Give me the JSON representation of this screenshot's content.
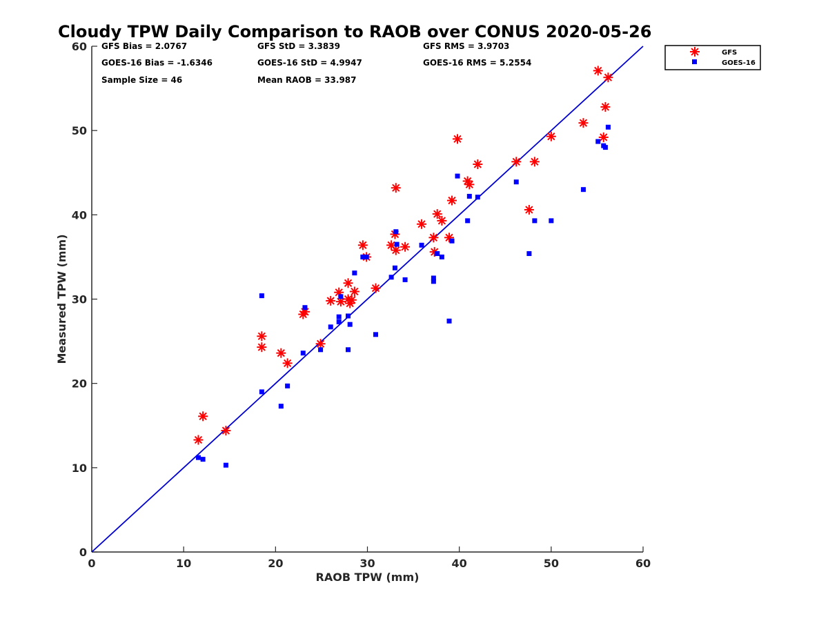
{
  "chart_data": {
    "type": "scatter",
    "title": "Cloudy TPW Daily Comparison to RAOB over CONUS 2020-05-26",
    "xlabel": "RAOB TPW (mm)",
    "ylabel": "Measured TPW (mm)",
    "xlim": [
      0,
      60
    ],
    "ylim": [
      0,
      60
    ],
    "xticks": [
      "0",
      "10",
      "20",
      "30",
      "40",
      "50",
      "60"
    ],
    "yticks": [
      "0",
      "10",
      "20",
      "30",
      "40",
      "50",
      "60"
    ],
    "grid": false,
    "legend_position": "top-right outside",
    "stats": [
      "GFS Bias = 2.0767",
      "GFS StD = 3.3839",
      "GFS RMS = 3.9703",
      "GOES-16 Bias = -1.6346",
      "GOES-16 StD = 4.9947",
      "GOES-16 RMS = 5.2554",
      "Sample Size = 46",
      "Mean RAOB = 33.987"
    ],
    "reference_line": {
      "x": [
        0,
        60
      ],
      "y": [
        0,
        60
      ],
      "color": "#0000cc"
    },
    "series": [
      {
        "name": "GFS",
        "marker": "asterisk",
        "color": "#ff0000",
        "points": [
          [
            11.6,
            13.3
          ],
          [
            12.1,
            16.1
          ],
          [
            14.6,
            14.4
          ],
          [
            18.5,
            25.6
          ],
          [
            18.5,
            24.3
          ],
          [
            20.6,
            23.6
          ],
          [
            21.3,
            22.4
          ],
          [
            23.0,
            28.2
          ],
          [
            23.2,
            28.5
          ],
          [
            24.9,
            24.7
          ],
          [
            26.0,
            29.8
          ],
          [
            26.9,
            30.8
          ],
          [
            27.1,
            29.7
          ],
          [
            27.9,
            31.9
          ],
          [
            27.9,
            30.0
          ],
          [
            28.1,
            29.5
          ],
          [
            28.3,
            29.9
          ],
          [
            28.6,
            30.9
          ],
          [
            29.5,
            36.4
          ],
          [
            29.9,
            35.0
          ],
          [
            30.9,
            31.3
          ],
          [
            32.6,
            36.4
          ],
          [
            33.0,
            37.7
          ],
          [
            33.1,
            35.8
          ],
          [
            33.1,
            43.2
          ],
          [
            34.1,
            36.2
          ],
          [
            35.9,
            38.9
          ],
          [
            37.2,
            37.3
          ],
          [
            37.3,
            35.6
          ],
          [
            37.6,
            40.1
          ],
          [
            38.1,
            39.3
          ],
          [
            38.9,
            37.3
          ],
          [
            39.2,
            41.7
          ],
          [
            39.8,
            49.0
          ],
          [
            40.9,
            44.0
          ],
          [
            41.1,
            43.6
          ],
          [
            42.0,
            46.0
          ],
          [
            46.2,
            46.3
          ],
          [
            47.6,
            40.6
          ],
          [
            48.2,
            46.3
          ],
          [
            50.0,
            49.3
          ],
          [
            53.5,
            50.9
          ],
          [
            55.1,
            57.1
          ],
          [
            55.7,
            49.2
          ],
          [
            55.9,
            52.8
          ],
          [
            56.2,
            56.3
          ]
        ]
      },
      {
        "name": "GOES-16",
        "marker": "square",
        "color": "#0000ff",
        "points": [
          [
            11.6,
            11.2
          ],
          [
            12.1,
            11.0
          ],
          [
            14.6,
            10.3
          ],
          [
            18.5,
            30.4
          ],
          [
            18.5,
            19.0
          ],
          [
            20.6,
            17.3
          ],
          [
            21.3,
            19.7
          ],
          [
            23.0,
            23.6
          ],
          [
            23.2,
            29.0
          ],
          [
            24.9,
            24.0
          ],
          [
            26.0,
            26.7
          ],
          [
            26.9,
            27.3
          ],
          [
            26.9,
            27.9
          ],
          [
            27.1,
            30.3
          ],
          [
            27.9,
            28.0
          ],
          [
            27.9,
            24.0
          ],
          [
            28.1,
            27.0
          ],
          [
            28.6,
            33.1
          ],
          [
            29.5,
            35.0
          ],
          [
            29.9,
            35.0
          ],
          [
            30.9,
            25.8
          ],
          [
            32.6,
            32.6
          ],
          [
            33.0,
            33.7
          ],
          [
            33.1,
            38.0
          ],
          [
            33.2,
            36.5
          ],
          [
            34.1,
            32.3
          ],
          [
            35.9,
            36.4
          ],
          [
            37.2,
            32.1
          ],
          [
            37.2,
            32.5
          ],
          [
            37.6,
            35.4
          ],
          [
            38.1,
            35.0
          ],
          [
            38.9,
            27.4
          ],
          [
            39.2,
            36.9
          ],
          [
            39.8,
            44.6
          ],
          [
            40.9,
            39.3
          ],
          [
            41.1,
            42.2
          ],
          [
            42.0,
            42.1
          ],
          [
            46.2,
            43.9
          ],
          [
            47.6,
            35.4
          ],
          [
            48.2,
            39.3
          ],
          [
            50.0,
            39.3
          ],
          [
            53.5,
            43.0
          ],
          [
            55.1,
            48.7
          ],
          [
            55.7,
            48.2
          ],
          [
            55.9,
            48.0
          ],
          [
            56.2,
            50.4
          ]
        ]
      }
    ]
  }
}
